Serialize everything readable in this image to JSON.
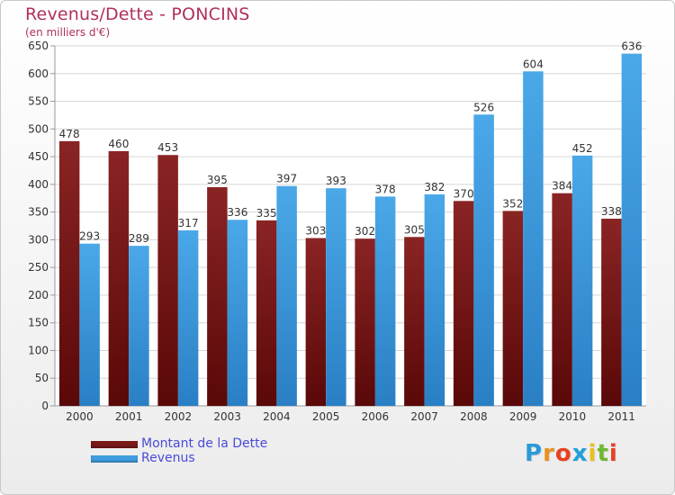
{
  "header": {
    "title": "Revenus/Dette - PONCINS",
    "subtitle": "(en milliers d'€)"
  },
  "colors": {
    "title": "#b0305c",
    "dette": "#7a1818",
    "revenus": "#3f9ee0",
    "grid": "#d6d6d6",
    "legend_text": "#4a4ad8"
  },
  "chart_data": {
    "type": "bar",
    "categories": [
      "2000",
      "2001",
      "2002",
      "2003",
      "2004",
      "2005",
      "2006",
      "2007",
      "2008",
      "2009",
      "2010",
      "2011"
    ],
    "series": [
      {
        "name": "Montant de la Dette",
        "values": [
          478,
          460,
          453,
          395,
          335,
          303,
          302,
          305,
          370,
          352,
          384,
          338
        ]
      },
      {
        "name": "Revenus",
        "values": [
          293,
          289,
          317,
          336,
          397,
          393,
          378,
          382,
          526,
          604,
          452,
          636
        ]
      }
    ],
    "title": "Revenus/Dette - PONCINS",
    "ylabel": "(en milliers d'€)",
    "xlabel": "",
    "ylim": [
      0,
      650
    ],
    "yticks": [
      0,
      50,
      100,
      150,
      200,
      250,
      300,
      350,
      400,
      450,
      500,
      550,
      600,
      650
    ],
    "grid": true,
    "legend": "bottom-left"
  },
  "legend": {
    "items": [
      {
        "label": "Montant de la Dette",
        "color": "#7a1818"
      },
      {
        "label": "Revenus",
        "color": "#3f9ee0"
      }
    ]
  },
  "logo": {
    "text": "Proxiti",
    "letter_colors": [
      "#2a9ad8",
      "#e89020",
      "#e84020",
      "#20a0d8",
      "#e8c020",
      "#70b830",
      "#e84020"
    ]
  }
}
